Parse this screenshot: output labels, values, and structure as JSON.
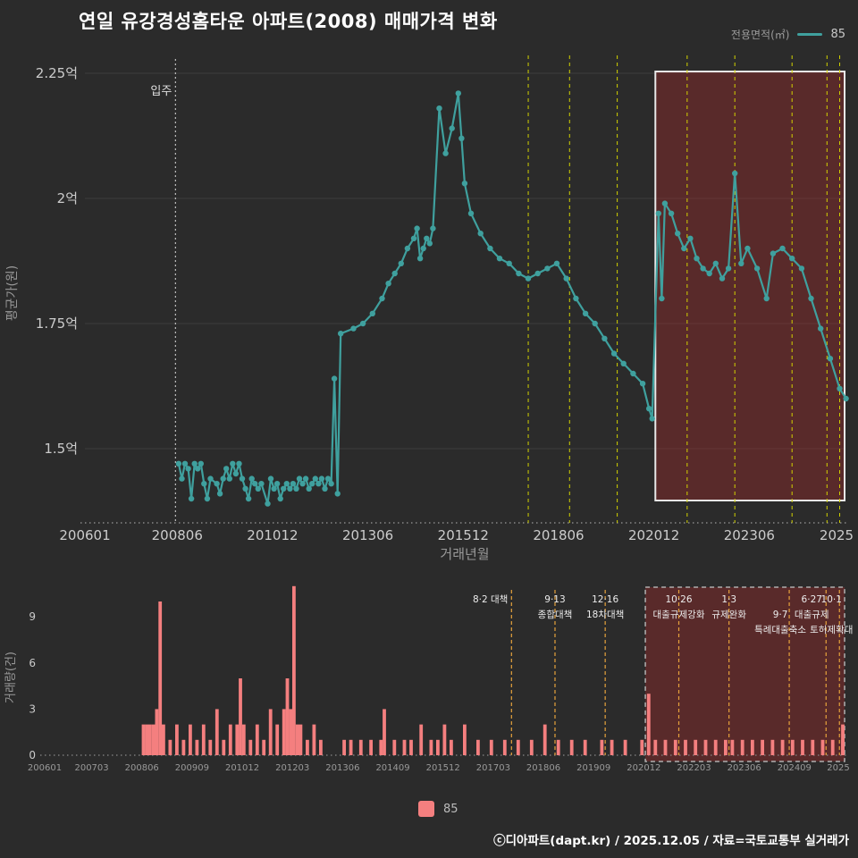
{
  "title": "연일 유강경성홈타운 아파트(2008) 매매가격 변화",
  "legend_top": {
    "label": "전용면적(㎡)",
    "value": "85"
  },
  "bottom_legend": {
    "label": "85"
  },
  "footer": "ⓒ디아파트(dapt.kr) / 2025.12.05 / 자료=국토교통부 실거래가",
  "colors": {
    "background": "#2b2b2b",
    "line": "#3fa09e",
    "bar": "#f47f7f",
    "policy_main": "#d2d200",
    "policy_vol": "#e6a23c",
    "highlight_fill": "rgba(165,42,42,0.38)",
    "highlight_border_main": "#e8e8e8",
    "highlight_border_vol": "#b0b0b0",
    "grid": "#3c3c3c",
    "tick": "#cccccc",
    "axis_label": "#999999",
    "annotation": "#ececec"
  },
  "chart_data": [
    {
      "type": "line",
      "title": "연일 유강경성홈타운 아파트(2008) 매매가격 변화",
      "series_name": "85",
      "xlabel": "거래년월",
      "ylabel": "평균가(원)",
      "unit": "억",
      "xlim": [
        2006.0,
        2025.92
      ],
      "ylim": [
        1.35,
        2.27
      ],
      "grid": "horizontal",
      "legend_position": "top-right",
      "yticks": [
        {
          "value": 2.25,
          "label": "2.25억"
        },
        {
          "value": 2.0,
          "label": "2억"
        },
        {
          "value": 1.75,
          "label": "1.75억"
        },
        {
          "value": 1.5,
          "label": "1.5억"
        }
      ],
      "xticks": [
        {
          "t": 2006.0,
          "label": "200601"
        },
        {
          "t": 2008.42,
          "label": "200806"
        },
        {
          "t": 2010.92,
          "label": "201012"
        },
        {
          "t": 2013.42,
          "label": "201306"
        },
        {
          "t": 2015.92,
          "label": "201512"
        },
        {
          "t": 2018.42,
          "label": "201806"
        },
        {
          "t": 2020.92,
          "label": "202012"
        },
        {
          "t": 2023.42,
          "label": "202306"
        },
        {
          "t": 2025.92,
          "label": "2025"
        }
      ],
      "move_in": {
        "ym": 200805,
        "label": "입주"
      },
      "policy_lines": [
        201708,
        201809,
        201912,
        202110,
        202301,
        202407,
        202506,
        202510
      ],
      "highlight": {
        "from": 202012,
        "to": 202512
      },
      "points": [
        [
          200806,
          1.47
        ],
        [
          200807,
          1.44
        ],
        [
          200808,
          1.47
        ],
        [
          200809,
          1.46
        ],
        [
          200810,
          1.4
        ],
        [
          200811,
          1.47
        ],
        [
          200812,
          1.46
        ],
        [
          200901,
          1.47
        ],
        [
          200902,
          1.43
        ],
        [
          200903,
          1.4
        ],
        [
          200904,
          1.44
        ],
        [
          200906,
          1.43
        ],
        [
          200907,
          1.41
        ],
        [
          200908,
          1.44
        ],
        [
          200909,
          1.46
        ],
        [
          200910,
          1.44
        ],
        [
          200911,
          1.47
        ],
        [
          200912,
          1.45
        ],
        [
          201001,
          1.47
        ],
        [
          201002,
          1.44
        ],
        [
          201003,
          1.42
        ],
        [
          201004,
          1.4
        ],
        [
          201005,
          1.44
        ],
        [
          201006,
          1.43
        ],
        [
          201007,
          1.42
        ],
        [
          201008,
          1.43
        ],
        [
          201010,
          1.39
        ],
        [
          201011,
          1.44
        ],
        [
          201012,
          1.42
        ],
        [
          201101,
          1.43
        ],
        [
          201102,
          1.4
        ],
        [
          201103,
          1.42
        ],
        [
          201104,
          1.43
        ],
        [
          201105,
          1.42
        ],
        [
          201106,
          1.43
        ],
        [
          201107,
          1.42
        ],
        [
          201108,
          1.44
        ],
        [
          201109,
          1.43
        ],
        [
          201110,
          1.44
        ],
        [
          201111,
          1.42
        ],
        [
          201112,
          1.43
        ],
        [
          201201,
          1.44
        ],
        [
          201202,
          1.43
        ],
        [
          201203,
          1.44
        ],
        [
          201204,
          1.42
        ],
        [
          201205,
          1.44
        ],
        [
          201206,
          1.43
        ],
        [
          201207,
          1.64
        ],
        [
          201208,
          1.41
        ],
        [
          201209,
          1.73
        ],
        [
          201301,
          1.74
        ],
        [
          201304,
          1.75
        ],
        [
          201307,
          1.77
        ],
        [
          201310,
          1.8
        ],
        [
          201312,
          1.83
        ],
        [
          201402,
          1.85
        ],
        [
          201404,
          1.87
        ],
        [
          201406,
          1.9
        ],
        [
          201408,
          1.92
        ],
        [
          201409,
          1.94
        ],
        [
          201410,
          1.88
        ],
        [
          201411,
          1.9
        ],
        [
          201412,
          1.92
        ],
        [
          201501,
          1.91
        ],
        [
          201502,
          1.94
        ],
        [
          201504,
          2.18
        ],
        [
          201506,
          2.09
        ],
        [
          201508,
          2.14
        ],
        [
          201510,
          2.21
        ],
        [
          201511,
          2.12
        ],
        [
          201512,
          2.03
        ],
        [
          201602,
          1.97
        ],
        [
          201605,
          1.93
        ],
        [
          201608,
          1.9
        ],
        [
          201611,
          1.88
        ],
        [
          201702,
          1.87
        ],
        [
          201705,
          1.85
        ],
        [
          201708,
          1.84
        ],
        [
          201711,
          1.85
        ],
        [
          201802,
          1.86
        ],
        [
          201805,
          1.87
        ],
        [
          201808,
          1.84
        ],
        [
          201811,
          1.8
        ],
        [
          201902,
          1.77
        ],
        [
          201905,
          1.75
        ],
        [
          201908,
          1.72
        ],
        [
          201911,
          1.69
        ],
        [
          202002,
          1.67
        ],
        [
          202005,
          1.65
        ],
        [
          202008,
          1.63
        ],
        [
          202010,
          1.58
        ],
        [
          202011,
          1.56
        ],
        [
          202101,
          1.97
        ],
        [
          202102,
          1.8
        ],
        [
          202103,
          1.99
        ],
        [
          202105,
          1.97
        ],
        [
          202107,
          1.93
        ],
        [
          202109,
          1.9
        ],
        [
          202111,
          1.92
        ],
        [
          202201,
          1.88
        ],
        [
          202203,
          1.86
        ],
        [
          202205,
          1.85
        ],
        [
          202207,
          1.87
        ],
        [
          202209,
          1.84
        ],
        [
          202211,
          1.86
        ],
        [
          202301,
          2.05
        ],
        [
          202303,
          1.87
        ],
        [
          202305,
          1.9
        ],
        [
          202308,
          1.86
        ],
        [
          202311,
          1.8
        ],
        [
          202401,
          1.89
        ],
        [
          202404,
          1.9
        ],
        [
          202407,
          1.88
        ],
        [
          202410,
          1.86
        ],
        [
          202501,
          1.8
        ],
        [
          202504,
          1.74
        ],
        [
          202507,
          1.68
        ],
        [
          202510,
          1.62
        ],
        [
          202512,
          1.6
        ]
      ]
    },
    {
      "type": "bar",
      "series_name": "85",
      "xlabel": "",
      "ylabel": "거래량(건)",
      "xlim": [
        2006.0,
        2025.92
      ],
      "ylim": [
        0,
        11
      ],
      "yticks": [
        0,
        3,
        6,
        9
      ],
      "xticks": [
        {
          "t": 2006.0,
          "label": "200601"
        },
        {
          "t": 2007.17,
          "label": "200703"
        },
        {
          "t": 2008.42,
          "label": "200806"
        },
        {
          "t": 2009.67,
          "label": "200909"
        },
        {
          "t": 2010.92,
          "label": "201012"
        },
        {
          "t": 2012.17,
          "label": "201203"
        },
        {
          "t": 2013.42,
          "label": "201306"
        },
        {
          "t": 2014.67,
          "label": "201409"
        },
        {
          "t": 2015.92,
          "label": "201512"
        },
        {
          "t": 2017.17,
          "label": "201703"
        },
        {
          "t": 2018.42,
          "label": "201806"
        },
        {
          "t": 2019.67,
          "label": "201909"
        },
        {
          "t": 2020.92,
          "label": "202012"
        },
        {
          "t": 2022.17,
          "label": "202203"
        },
        {
          "t": 2023.42,
          "label": "202306"
        },
        {
          "t": 2024.67,
          "label": "202409"
        },
        {
          "t": 2025.92,
          "label": "2025"
        }
      ],
      "highlight": {
        "from": 202012,
        "to": 202512
      },
      "policies": [
        {
          "ym": 201708,
          "anchor": "end",
          "dx": -4,
          "rows": [
            [
              "8·2 대책",
              0
            ]
          ]
        },
        {
          "ym": 201809,
          "rows": [
            [
              "9·13",
              0
            ],
            [
              "종합대책",
              1
            ]
          ]
        },
        {
          "ym": 201912,
          "rows": [
            [
              "12·16",
              0
            ],
            [
              "18차대책",
              1
            ]
          ]
        },
        {
          "ym": 202110,
          "rows": [
            [
              "10·26",
              0
            ],
            [
              "대출규제강화",
              1
            ]
          ]
        },
        {
          "ym": 202301,
          "rows": [
            [
              "1·3",
              0
            ],
            [
              "규제완화",
              1
            ]
          ]
        },
        {
          "ym": 202407,
          "dx": -10,
          "rows": [
            [
              "9·7",
              1
            ],
            [
              "특례대출축소",
              2
            ]
          ]
        },
        {
          "ym": 202506,
          "dx": -16,
          "rows": [
            [
              "6·27",
              0
            ],
            [
              "대출규제",
              1
            ]
          ]
        },
        {
          "ym": 202510,
          "dx": -9,
          "rows": [
            [
              "10·1",
              0
            ],
            [
              "토허제확대",
              2
            ]
          ]
        }
      ],
      "bars": [
        [
          200806,
          2
        ],
        [
          200807,
          2
        ],
        [
          200808,
          2
        ],
        [
          200809,
          2
        ],
        [
          200810,
          3
        ],
        [
          200811,
          10
        ],
        [
          200812,
          2
        ],
        [
          200902,
          1
        ],
        [
          200904,
          2
        ],
        [
          200906,
          1
        ],
        [
          200908,
          2
        ],
        [
          200910,
          1
        ],
        [
          200912,
          2
        ],
        [
          201002,
          1
        ],
        [
          201004,
          3
        ],
        [
          201006,
          1
        ],
        [
          201008,
          2
        ],
        [
          201010,
          2
        ],
        [
          201011,
          5
        ],
        [
          201012,
          2
        ],
        [
          201102,
          1
        ],
        [
          201104,
          2
        ],
        [
          201106,
          1
        ],
        [
          201108,
          3
        ],
        [
          201110,
          2
        ],
        [
          201112,
          3
        ],
        [
          201201,
          5
        ],
        [
          201202,
          3
        ],
        [
          201203,
          11
        ],
        [
          201204,
          2
        ],
        [
          201205,
          2
        ],
        [
          201207,
          1
        ],
        [
          201209,
          2
        ],
        [
          201211,
          1
        ],
        [
          201306,
          1
        ],
        [
          201308,
          1
        ],
        [
          201311,
          1
        ],
        [
          201402,
          1
        ],
        [
          201405,
          1
        ],
        [
          201406,
          3
        ],
        [
          201409,
          1
        ],
        [
          201412,
          1
        ],
        [
          201502,
          1
        ],
        [
          201505,
          2
        ],
        [
          201508,
          1
        ],
        [
          201510,
          1
        ],
        [
          201512,
          2
        ],
        [
          201602,
          1
        ],
        [
          201606,
          2
        ],
        [
          201610,
          1
        ],
        [
          201702,
          1
        ],
        [
          201706,
          1
        ],
        [
          201710,
          1
        ],
        [
          201802,
          1
        ],
        [
          201806,
          2
        ],
        [
          201810,
          1
        ],
        [
          201902,
          1
        ],
        [
          201906,
          1
        ],
        [
          201911,
          1
        ],
        [
          202002,
          1
        ],
        [
          202006,
          1
        ],
        [
          202011,
          1
        ],
        [
          202101,
          4
        ],
        [
          202103,
          1
        ],
        [
          202106,
          1
        ],
        [
          202109,
          1
        ],
        [
          202112,
          1
        ],
        [
          202203,
          1
        ],
        [
          202206,
          1
        ],
        [
          202209,
          1
        ],
        [
          202212,
          1
        ],
        [
          202302,
          1
        ],
        [
          202305,
          1
        ],
        [
          202308,
          1
        ],
        [
          202311,
          1
        ],
        [
          202402,
          1
        ],
        [
          202405,
          1
        ],
        [
          202408,
          1
        ],
        [
          202411,
          1
        ],
        [
          202502,
          1
        ],
        [
          202505,
          1
        ],
        [
          202508,
          1
        ],
        [
          202511,
          1
        ],
        [
          202512,
          2
        ]
      ]
    }
  ]
}
